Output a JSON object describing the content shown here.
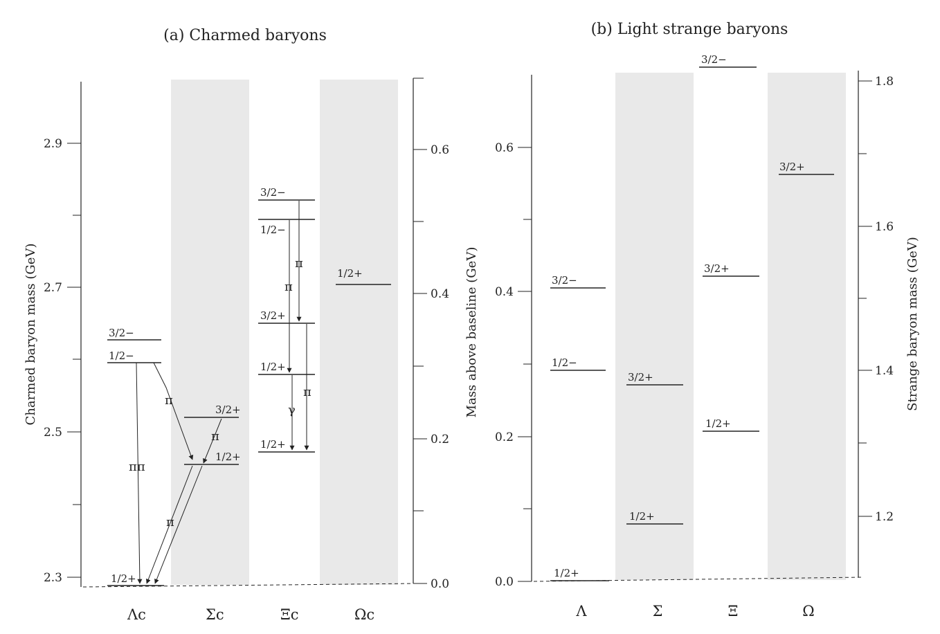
{
  "colors": {
    "ink": "#222222",
    "band": "#e9e9e9",
    "background": "#ffffff"
  },
  "panel_a": {
    "title": "(a) Charmed baryons",
    "left_axis_label": "Charmed baryon mass  (GeV)",
    "right_axis_label": "Mass above baseline  (GeV)",
    "left_ticks": [
      "2.9",
      "2.7",
      "2.5",
      "2.3"
    ],
    "right_ticks": [
      "0.6",
      "0.4",
      "0.2",
      "0.0"
    ],
    "columns": [
      "Λc",
      "Σc",
      "Ξc",
      "Ωc"
    ],
    "levels": [
      {
        "column": "Λc",
        "label": "1/2+",
        "mass_gev": 2.286
      },
      {
        "column": "Λc",
        "label": "1/2−",
        "mass_gev": 2.595
      },
      {
        "column": "Λc",
        "label": "3/2−",
        "mass_gev": 2.628
      },
      {
        "column": "Σc",
        "label": "1/2+",
        "mass_gev": 2.454
      },
      {
        "column": "Σc",
        "label": "3/2+",
        "mass_gev": 2.518
      },
      {
        "column": "Ξc",
        "label": "1/2+",
        "mass_gev": 2.47
      },
      {
        "column": "Ξc",
        "label": "1/2+",
        "mass_gev": 2.578
      },
      {
        "column": "Ξc",
        "label": "3/2+",
        "mass_gev": 2.646
      },
      {
        "column": "Ξc",
        "label": "1/2−",
        "mass_gev": 2.79
      },
      {
        "column": "Ξc",
        "label": "3/2−",
        "mass_gev": 2.816
      },
      {
        "column": "Ωc",
        "label": "1/2+",
        "mass_gev": 2.698
      }
    ],
    "transition_labels": [
      "ππ",
      "π",
      "π",
      "π",
      "π",
      "π",
      "π",
      "γ"
    ]
  },
  "panel_b": {
    "title": "(b) Light strange baryons",
    "left_ticks": [
      "0.6",
      "0.4",
      "0.2",
      "0.0"
    ],
    "right_axis_label": "Strange baryon mass  (GeV)",
    "right_ticks": [
      "1.8",
      "1.6",
      "1.4",
      "1.2"
    ],
    "columns": [
      "Λ",
      "Σ",
      "Ξ",
      "Ω"
    ],
    "levels": [
      {
        "column": "Λ",
        "label": "1/2+",
        "mass_gev": 1.116
      },
      {
        "column": "Λ",
        "label": "1/2−",
        "mass_gev": 1.405
      },
      {
        "column": "Λ",
        "label": "3/2−",
        "mass_gev": 1.52
      },
      {
        "column": "Σ",
        "label": "1/2+",
        "mass_gev": 1.193
      },
      {
        "column": "Σ",
        "label": "3/2+",
        "mass_gev": 1.385
      },
      {
        "column": "Ξ",
        "label": "1/2+",
        "mass_gev": 1.318
      },
      {
        "column": "Ξ",
        "label": "3/2+",
        "mass_gev": 1.533
      },
      {
        "column": "Ξ",
        "label": "3/2−",
        "mass_gev": 1.823
      },
      {
        "column": "Ω",
        "label": "3/2+",
        "mass_gev": 1.672
      }
    ]
  }
}
